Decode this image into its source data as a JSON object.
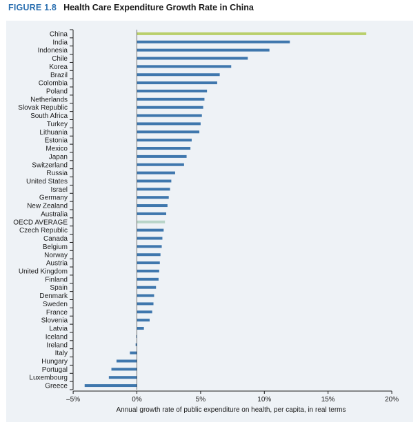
{
  "figure": {
    "label": "FIGURE 1.8",
    "title": "Health Care Expenditure Growth Rate in China"
  },
  "colors": {
    "china": "#b9cf6b",
    "oecd": "#b8d4c8",
    "default": "#3f77ad",
    "panel": "#eef2f6"
  },
  "chart_data": {
    "type": "bar",
    "orientation": "horizontal",
    "title": "Health Care Expenditure Growth Rate in China",
    "xlabel": "Annual growth rate of public expenditure on health, per capita, in real terms",
    "ylabel": "",
    "xlim": [
      -5,
      20
    ],
    "xticks": [
      -5,
      0,
      5,
      10,
      15,
      20
    ],
    "xtick_labels": [
      "–5%",
      "0%",
      "5%",
      "10%",
      "15%",
      "20%"
    ],
    "grid": false,
    "categories": [
      "China",
      "India",
      "Indonesia",
      "Chile",
      "Korea",
      "Brazil",
      "Colombia",
      "Poland",
      "Netherlands",
      "Slovak Republic",
      "South Africa",
      "Turkey",
      "Lithuania",
      "Estonia",
      "Mexico",
      "Japan",
      "Switzerland",
      "Russia",
      "United States",
      "Israel",
      "Germany",
      "New Zealand",
      "Australia",
      "OECD AVERAGE",
      "Czech Republic",
      "Canada",
      "Belgium",
      "Norway",
      "Austria",
      "United Kingdom",
      "Finland",
      "Spain",
      "Denmark",
      "Sweden",
      "France",
      "Slovenia",
      "Latvia",
      "Iceland",
      "Ireland",
      "Italy",
      "Hungary",
      "Portugal",
      "Luxembourg",
      "Greece"
    ],
    "values": [
      18.0,
      12.0,
      10.4,
      8.7,
      7.4,
      6.5,
      6.3,
      5.5,
      5.3,
      5.2,
      5.1,
      5.0,
      4.9,
      4.3,
      4.2,
      3.9,
      3.7,
      3.0,
      2.7,
      2.6,
      2.5,
      2.4,
      2.3,
      2.2,
      2.1,
      2.0,
      1.95,
      1.85,
      1.8,
      1.75,
      1.7,
      1.5,
      1.35,
      1.3,
      1.2,
      1.0,
      0.55,
      -0.05,
      -0.1,
      -0.55,
      -1.6,
      -2.0,
      -2.2,
      -4.1
    ]
  }
}
